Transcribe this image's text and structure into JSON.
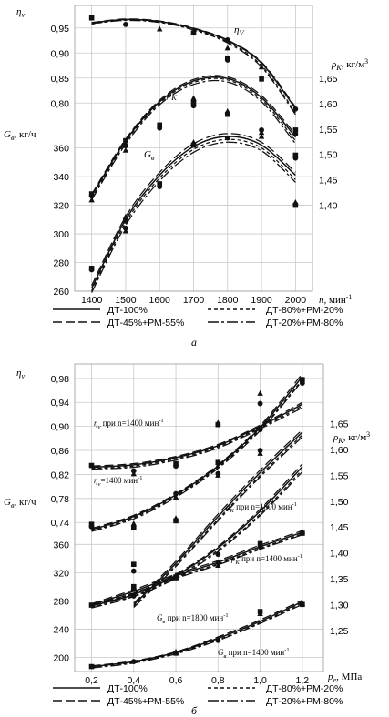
{
  "legend": [
    {
      "label": "ДТ-100%",
      "dash": "solid"
    },
    {
      "label": "ДТ-80%+РМ-20%",
      "dash": "short"
    },
    {
      "label": "ДТ-45%+РМ-55%",
      "dash": "long"
    },
    {
      "label": "ДТ-20%+РМ-80%",
      "dash": "longshort"
    }
  ],
  "chart_data": [
    {
      "type": "line",
      "caption": "а",
      "x": [
        1400,
        1500,
        1600,
        1700,
        1800,
        1900,
        2000
      ],
      "xticks": [
        "1400",
        "1500",
        "1600",
        "1700",
        "1800",
        "1900",
        "2000"
      ],
      "xlim": [
        1350,
        2050
      ],
      "xlabel_sym": "n",
      "xlabel_unit": ", мин",
      "xlabel_sup": "-1",
      "left_axes": [
        {
          "sym": "η",
          "sub": "v",
          "unit": "",
          "ticks": [
            "0,95",
            "0,90",
            "0,85",
            "0,80"
          ],
          "values": [
            0.95,
            0.9,
            0.85,
            0.8
          ],
          "lim": [
            0.755,
            0.995
          ]
        },
        {
          "sym": "G",
          "sub": "в",
          "unit": ", кг/ч",
          "ticks": [
            "360",
            "340",
            "320",
            "300",
            "280",
            "260"
          ],
          "values": [
            360,
            340,
            320,
            300,
            280,
            260
          ],
          "lim": [
            260,
            389
          ]
        }
      ],
      "right_axis": {
        "sym": "ρ",
        "sub": "K",
        "unit": ", кг/м",
        "sup": "3",
        "ticks": [
          "1,65",
          "1,60",
          "1,55",
          "1,50",
          "1,45",
          "1,40"
        ],
        "values": [
          1.65,
          1.6,
          1.55,
          1.5,
          1.45,
          1.4
        ],
        "lim": [
          1.352,
          1.697
        ]
      },
      "series": [
        {
          "label_sym": "η",
          "label_sub": "V",
          "axis": "eta",
          "curves": [
            [
              0.96,
              0.967,
              0.963,
              0.949,
              0.925,
              0.88,
              0.789
            ],
            [
              0.958,
              0.966,
              0.962,
              0.947,
              0.922,
              0.875,
              0.781
            ],
            [
              0.961,
              0.968,
              0.964,
              0.95,
              0.926,
              0.882,
              0.792
            ],
            [
              0.959,
              0.965,
              0.961,
              0.946,
              0.92,
              0.872,
              0.777
            ]
          ],
          "points": [
            [
              1400,
              0.97
            ],
            [
              1500,
              0.957
            ],
            [
              1600,
              0.948
            ],
            [
              1700,
              0.94
            ],
            [
              1800,
              0.926
            ],
            [
              1800,
              0.91
            ],
            [
              1800,
              0.89
            ],
            [
              1800,
              0.886
            ],
            [
              1900,
              0.872
            ],
            [
              1900,
              0.848
            ],
            [
              2000,
              0.788
            ]
          ]
        },
        {
          "label_sym": "ρ",
          "label_sub": "K",
          "axis": "rho",
          "curves": [
            [
              1.418,
              1.527,
              1.604,
              1.645,
              1.65,
              1.612,
              1.534
            ],
            [
              1.413,
              1.524,
              1.601,
              1.642,
              1.647,
              1.608,
              1.527
            ],
            [
              1.421,
              1.53,
              1.607,
              1.648,
              1.653,
              1.616,
              1.539
            ],
            [
              1.41,
              1.52,
              1.598,
              1.638,
              1.643,
              1.604,
              1.521
            ]
          ],
          "points": [
            [
              1400,
              1.422
            ],
            [
              1400,
              1.418
            ],
            [
              1400,
              1.41
            ],
            [
              1500,
              1.527
            ],
            [
              1500,
              1.517
            ],
            [
              1500,
              1.508
            ],
            [
              1600,
              1.558
            ],
            [
              1600,
              1.552
            ],
            [
              1700,
              1.611
            ],
            [
              1700,
              1.602
            ],
            [
              1700,
              1.596
            ],
            [
              1800,
              1.585
            ],
            [
              1800,
              1.579
            ],
            [
              1900,
              1.548
            ],
            [
              1900,
              1.543
            ],
            [
              2000,
              1.548
            ],
            [
              2000,
              1.54
            ]
          ]
        },
        {
          "label_sym": "G",
          "label_sub": "в",
          "axis": "g",
          "curves": [
            [
              262,
              310,
              341,
              361,
              368,
              362,
              341
            ],
            [
              260,
              308,
              339,
              359,
              366,
              360,
              338
            ],
            [
              264,
              312,
              343,
              363,
              370,
              364,
              343
            ],
            [
              259,
              306,
              337,
              357,
              364,
              358,
              336
            ]
          ],
          "points": [
            [
              1400,
              276
            ],
            [
              1400,
              275
            ],
            [
              1500,
              312
            ],
            [
              1500,
              309
            ],
            [
              1500,
              304
            ],
            [
              1500,
              302
            ],
            [
              1600,
              335
            ],
            [
              1600,
              333
            ],
            [
              1700,
              364
            ],
            [
              1700,
              362
            ],
            [
              1800,
              367
            ],
            [
              1900,
              368
            ],
            [
              2000,
              355
            ],
            [
              2000,
              353
            ],
            [
              2000,
              322
            ],
            [
              2000,
              320
            ]
          ]
        }
      ]
    },
    {
      "type": "line",
      "caption": "б",
      "x": [
        0.2,
        0.4,
        0.6,
        0.8,
        1.0,
        1.2
      ],
      "xticks": [
        "0,2",
        "0,4",
        "0,6",
        "0,8",
        "1,0",
        "1,2"
      ],
      "xlim": [
        0.12,
        1.3
      ],
      "xlabel_sym": "p",
      "xlabel_sub": "e",
      "xlabel_unit": ", МПа",
      "left_axes": [
        {
          "sym": "η",
          "sub": "v",
          "unit": "",
          "ticks": [
            "0,98",
            "0,94",
            "0,90",
            "0,86",
            "0,82",
            "0,78",
            "0,74"
          ],
          "values": [
            0.98,
            0.94,
            0.9,
            0.86,
            0.82,
            0.78,
            0.74
          ],
          "lim": [
            0.707,
            1.004
          ]
        },
        {
          "sym": "G",
          "sub": "в",
          "unit": ", кг/ч",
          "ticks": [
            "360",
            "320",
            "280",
            "240",
            "200"
          ],
          "values": [
            360,
            320,
            280,
            240,
            200
          ],
          "lim": [
            180,
            381
          ]
        }
      ],
      "right_axis": {
        "sym": "ρ",
        "sub": "K",
        "unit": ", кг/м",
        "sup": "3",
        "ticks": [
          "1,65",
          "1,60",
          "1,55",
          "1,50",
          "1,45",
          "1,40",
          "1,35",
          "1,30",
          "1,25"
        ],
        "values": [
          1.65,
          1.6,
          1.55,
          1.5,
          1.45,
          1.4,
          1.35,
          1.3,
          1.25
        ],
        "lim": [
          1.208,
          1.756
        ]
      },
      "series": [
        {
          "label_sym": "η",
          "label_sub": "v",
          "label_rest": " при n=1400 мин",
          "label_sup": "-1",
          "axis": "eta",
          "curves": [
            [
              0.832,
              0.836,
              0.848,
              0.868,
              0.9,
              0.937
            ],
            [
              0.83,
              0.834,
              0.846,
              0.866,
              0.898,
              0.934
            ],
            [
              0.834,
              0.838,
              0.85,
              0.87,
              0.902,
              0.94
            ],
            [
              0.829,
              0.832,
              0.844,
              0.864,
              0.896,
              0.931
            ]
          ],
          "points": [
            [
              0.2,
              0.835
            ],
            [
              0.4,
              0.826
            ],
            [
              0.4,
              0.821
            ],
            [
              0.6,
              0.838
            ],
            [
              0.6,
              0.834
            ],
            [
              0.8,
              0.906
            ],
            [
              0.8,
              0.903
            ],
            [
              1.0,
              0.938
            ],
            [
              1.0,
              0.955
            ]
          ]
        },
        {
          "label_sym": "η",
          "label_sub": "v",
          "label_rest": "=1400 мин",
          "label_sup": "-1",
          "axis": "eta",
          "curves": [
            [
              0.728,
              0.75,
              0.786,
              0.834,
              0.898,
              0.983
            ],
            [
              0.726,
              0.748,
              0.784,
              0.832,
              0.895,
              0.978
            ],
            [
              0.73,
              0.752,
              0.788,
              0.836,
              0.901,
              0.988
            ],
            [
              0.725,
              0.746,
              0.782,
              0.83,
              0.893,
              0.976
            ]
          ],
          "points": [
            [
              0.2,
              0.737
            ],
            [
              0.2,
              0.733
            ],
            [
              0.4,
              0.738
            ],
            [
              0.4,
              0.731
            ],
            [
              0.6,
              0.788
            ],
            [
              0.6,
              0.782
            ],
            [
              0.8,
              0.84
            ],
            [
              1.0,
              0.86
            ],
            [
              1.0,
              0.855
            ],
            [
              1.2,
              0.978
            ],
            [
              1.2,
              0.972
            ]
          ]
        },
        {
          "label_sym": "ρ",
          "label_sub": "K",
          "label_rest": " при n=1800 мин",
          "label_sup": "-1",
          "axis": "rho",
          "curves": [
            [
              1.3,
              1.38,
              1.47,
              1.555,
              1.633
            ],
            [
              1.297,
              1.376,
              1.465,
              1.55,
              1.628
            ],
            [
              1.303,
              1.384,
              1.475,
              1.56,
              1.638
            ],
            [
              1.295,
              1.374,
              1.462,
              1.547,
              1.624
            ]
          ],
          "points": [
            [
              0.4,
              1.378
            ],
            [
              0.4,
              1.365
            ],
            [
              0.6,
              1.467
            ],
            [
              0.6,
              1.462
            ],
            [
              0.8,
              1.553
            ],
            [
              0.8,
              1.55
            ],
            [
              1.0,
              1.641
            ],
            [
              1.0,
              1.638
            ]
          ]
        },
        {
          "label_sym": "ρ",
          "label_sub": "K",
          "label_rest": " при n=1400 мин",
          "label_sup": "-1",
          "axis": "rho",
          "curves": [
            [
              1.3,
              1.326,
              1.356,
              1.382,
              1.412,
              1.44
            ],
            [
              1.298,
              1.323,
              1.353,
              1.379,
              1.409,
              1.437
            ],
            [
              1.302,
              1.329,
              1.359,
              1.385,
              1.415,
              1.443
            ],
            [
              1.297,
              1.321,
              1.351,
              1.377,
              1.407,
              1.435
            ]
          ],
          "points": [
            [
              0.4,
              1.335
            ],
            [
              0.4,
              1.33
            ],
            [
              0.6,
              1.357
            ],
            [
              0.6,
              1.352
            ],
            [
              0.8,
              1.381
            ],
            [
              0.8,
              1.376
            ],
            [
              1.0,
              1.418
            ],
            [
              1.0,
              1.412
            ],
            [
              1.2,
              1.441
            ],
            [
              1.2,
              1.438
            ]
          ]
        },
        {
          "label_sym": "G",
          "label_sub": "в",
          "label_rest": " при n=1800 мин",
          "label_sup": "-1",
          "axis": "g",
          "curves": [
            [
              273,
              289,
              316,
              355,
              407,
              470
            ],
            [
              271,
              287,
              314,
              352,
              403,
              466
            ],
            [
              275,
              291,
              318,
              357,
              410,
              474
            ],
            [
              270,
              286,
              312,
              350,
              401,
              463
            ]
          ],
          "points": [
            [
              0.2,
              274
            ],
            [
              0.4,
              287
            ],
            [
              0.6,
              316
            ],
            [
              0.6,
              314
            ],
            [
              0.8,
              346
            ],
            [
              1.0,
              262
            ],
            [
              1.0,
              265
            ]
          ]
        },
        {
          "label_sym": "G",
          "label_sub": "в",
          "label_rest": " при n=1400 мин",
          "label_sup": "-1",
          "axis": "g",
          "curves": [
            [
              187,
              194,
              207,
              227,
              251,
              279
            ],
            [
              186,
              193,
              206,
              225,
              249,
              277
            ],
            [
              188,
              195,
              208,
              229,
              253,
              281
            ],
            [
              185,
              192,
              205,
              224,
              248,
              275
            ]
          ],
          "points": [
            [
              0.2,
              187
            ],
            [
              0.4,
              194
            ],
            [
              0.6,
              208
            ],
            [
              0.6,
              206
            ],
            [
              0.8,
              224
            ],
            [
              1.2,
              277
            ],
            [
              1.2,
              275
            ]
          ]
        }
      ]
    }
  ]
}
